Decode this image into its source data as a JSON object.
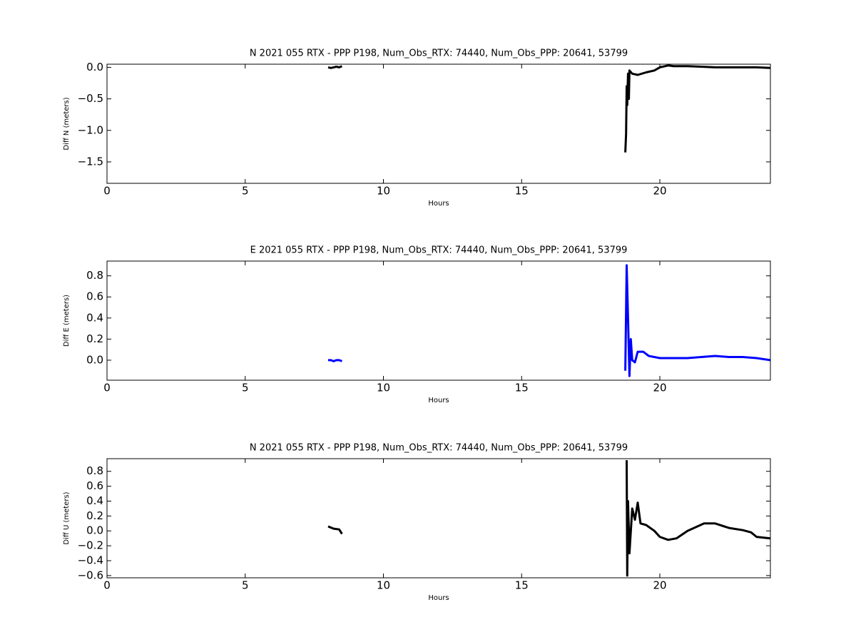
{
  "chart_data": [
    {
      "type": "line",
      "title": "N 2021 055 RTX - PPP  P198, Num_Obs_RTX: 74440, Num_Obs_PPP: 20641, 53799",
      "xlabel": "Hours",
      "ylabel": "Diff N (meters)",
      "color": "#000000",
      "x": [
        8.0,
        8.1,
        8.2,
        8.3,
        8.4,
        8.5,
        13,
        18.75,
        18.78,
        18.8,
        18.82,
        18.85,
        18.88,
        18.9,
        19.0,
        19.2,
        19.5,
        19.8,
        20.0,
        20.3,
        20.5,
        21,
        21.5,
        22,
        22.5,
        23,
        23.5,
        24
      ],
      "values": [
        0,
        -0.01,
        0,
        0.01,
        0,
        0.02,
        null,
        -1.35,
        -1.05,
        -0.3,
        -0.6,
        -0.1,
        -0.5,
        -0.05,
        -0.1,
        -0.12,
        -0.08,
        -0.05,
        0,
        0.03,
        0.02,
        0.02,
        0.01,
        0.0,
        0.0,
        0.0,
        0.0,
        -0.01
      ],
      "xlim": [
        0,
        24
      ],
      "xticks": [
        0,
        5,
        10,
        15,
        20
      ],
      "ylim": [
        -1.84,
        0.05
      ],
      "yticks": [
        {
          "value": -1.5,
          "label": "−1.5"
        },
        {
          "value": -1.0,
          "label": "−1.0"
        },
        {
          "value": -0.5,
          "label": "−0.5"
        },
        {
          "value": 0,
          "label": "0.0"
        }
      ]
    },
    {
      "type": "line",
      "title": "E 2021 055 RTX - PPP  P198, Num_Obs_RTX: 74440, Num_Obs_PPP: 20641, 53799",
      "xlabel": "Hours",
      "ylabel": "Diff E (meters)",
      "color": "#0000ff",
      "x": [
        8.0,
        8.1,
        8.2,
        8.3,
        8.4,
        8.5,
        13,
        18.75,
        18.8,
        18.85,
        18.9,
        18.95,
        19.0,
        19.1,
        19.2,
        19.4,
        19.6,
        20.0,
        20.5,
        21,
        21.5,
        22,
        22.5,
        23,
        23.5,
        24
      ],
      "values": [
        0.0,
        0.0,
        -0.01,
        0.0,
        0.0,
        -0.01,
        null,
        -0.1,
        0.9,
        0.4,
        -0.15,
        0.2,
        0.0,
        -0.02,
        0.08,
        0.08,
        0.04,
        0.02,
        0.02,
        0.02,
        0.03,
        0.04,
        0.03,
        0.03,
        0.02,
        0.0
      ],
      "xlim": [
        0,
        24
      ],
      "xticks": [
        0,
        5,
        10,
        15,
        20
      ],
      "ylim": [
        -0.19,
        0.94
      ],
      "yticks": [
        {
          "value": 0,
          "label": "0.0"
        },
        {
          "value": 0.2,
          "label": "0.2"
        },
        {
          "value": 0.4,
          "label": "0.4"
        },
        {
          "value": 0.6,
          "label": "0.6"
        },
        {
          "value": 0.8,
          "label": "0.8"
        }
      ]
    },
    {
      "type": "line",
      "title": "N 2021 055 RTX - PPP  P198, Num_Obs_RTX: 74440, Num_Obs_PPP: 20641, 53799",
      "xlabel": "Hours",
      "ylabel": "Diff U (meters)",
      "color": "#000000",
      "x": [
        8.0,
        8.2,
        8.4,
        8.5,
        13,
        18.8,
        18.82,
        18.85,
        18.9,
        19.0,
        19.1,
        19.2,
        19.3,
        19.5,
        19.8,
        20.0,
        20.3,
        20.6,
        21.0,
        21.3,
        21.6,
        22.0,
        22.5,
        23.0,
        23.3,
        23.5,
        24
      ],
      "values": [
        0.06,
        0.03,
        0.02,
        -0.04,
        null,
        0.95,
        -0.6,
        0.4,
        -0.3,
        0.3,
        0.15,
        0.38,
        0.1,
        0.08,
        0.0,
        -0.08,
        -0.12,
        -0.1,
        0.0,
        0.05,
        0.1,
        0.1,
        0.04,
        0.01,
        -0.02,
        -0.08,
        -0.1
      ],
      "xlim": [
        0,
        24
      ],
      "xticks": [
        0,
        5,
        10,
        15,
        20
      ],
      "ylim": [
        -0.63,
        0.97
      ],
      "yticks": [
        {
          "value": -0.6,
          "label": "−0.6"
        },
        {
          "value": -0.4,
          "label": "−0.4"
        },
        {
          "value": -0.2,
          "label": "−0.2"
        },
        {
          "value": 0,
          "label": "0.0"
        },
        {
          "value": 0.2,
          "label": "0.2"
        },
        {
          "value": 0.4,
          "label": "0.4"
        },
        {
          "value": 0.6,
          "label": "0.6"
        },
        {
          "value": 0.8,
          "label": "0.8"
        }
      ]
    }
  ]
}
